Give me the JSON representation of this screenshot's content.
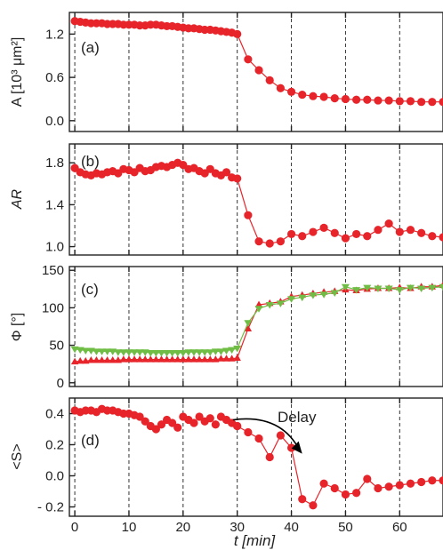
{
  "colors": {
    "red": "#e8242b",
    "green": "#6fbd44",
    "axis": "#222222",
    "grid": "#333333"
  },
  "chart_data": [
    {
      "type": "line",
      "panel_label": "(a)",
      "ylabel": "A [10³ μm²]",
      "yticks": [
        "1.2",
        "0.6",
        "0.0"
      ],
      "ytick_values": [
        1.2,
        0.6,
        0.0
      ],
      "ylim": [
        -0.15,
        1.5
      ],
      "xlim": [
        -1,
        68
      ],
      "grid": "vertical dashed at x ticks",
      "series": [
        {
          "marker": "circle",
          "x": [
            0,
            1,
            2,
            3,
            4,
            5,
            6,
            7,
            8,
            9,
            10,
            11,
            12,
            13,
            14,
            15,
            16,
            17,
            18,
            19,
            20,
            21,
            22,
            23,
            24,
            25,
            26,
            27,
            28,
            29,
            30,
            32,
            34,
            36,
            38,
            40,
            42,
            44,
            46,
            48,
            50,
            52,
            54,
            56,
            58,
            60,
            62,
            64,
            66,
            68
          ],
          "y": [
            1.38,
            1.37,
            1.36,
            1.35,
            1.35,
            1.35,
            1.34,
            1.34,
            1.34,
            1.33,
            1.33,
            1.33,
            1.32,
            1.32,
            1.33,
            1.33,
            1.32,
            1.31,
            1.31,
            1.3,
            1.29,
            1.28,
            1.28,
            1.27,
            1.26,
            1.26,
            1.25,
            1.24,
            1.23,
            1.22,
            1.2,
            0.85,
            0.7,
            0.56,
            0.45,
            0.4,
            0.36,
            0.34,
            0.33,
            0.31,
            0.3,
            0.29,
            0.29,
            0.28,
            0.28,
            0.27,
            0.27,
            0.26,
            0.26,
            0.26
          ]
        }
      ]
    },
    {
      "type": "line",
      "panel_label": "(b)",
      "ylabel": "AR",
      "yticks": [
        "1.8",
        "1.4",
        "1.0"
      ],
      "ytick_values": [
        1.8,
        1.4,
        1.0
      ],
      "ylim": [
        0.92,
        1.98
      ],
      "xlim": [
        -1,
        68
      ],
      "grid": "vertical dashed at x ticks",
      "series": [
        {
          "marker": "circle",
          "x": [
            0,
            1,
            2,
            3,
            4,
            5,
            6,
            7,
            8,
            9,
            10,
            11,
            12,
            13,
            14,
            15,
            16,
            17,
            18,
            19,
            20,
            21,
            22,
            23,
            24,
            25,
            26,
            27,
            28,
            29,
            30,
            32,
            34,
            36,
            38,
            40,
            42,
            44,
            46,
            48,
            50,
            52,
            54,
            56,
            58,
            60,
            62,
            64,
            66,
            68
          ],
          "y": [
            1.75,
            1.71,
            1.69,
            1.68,
            1.7,
            1.69,
            1.71,
            1.72,
            1.7,
            1.74,
            1.73,
            1.71,
            1.75,
            1.72,
            1.73,
            1.76,
            1.77,
            1.76,
            1.78,
            1.8,
            1.78,
            1.74,
            1.75,
            1.72,
            1.7,
            1.74,
            1.7,
            1.68,
            1.71,
            1.66,
            1.65,
            1.3,
            1.05,
            1.03,
            1.05,
            1.12,
            1.1,
            1.14,
            1.18,
            1.13,
            1.08,
            1.12,
            1.1,
            1.16,
            1.22,
            1.14,
            1.16,
            1.13,
            1.1,
            1.09
          ]
        }
      ]
    },
    {
      "type": "line",
      "panel_label": "(c)",
      "ylabel": "Φ [°]",
      "yticks": [
        "150",
        "100",
        "50",
        "0"
      ],
      "ytick_values": [
        150,
        100,
        50,
        0
      ],
      "ylim": [
        -5,
        155
      ],
      "xlim": [
        -1,
        68
      ],
      "grid": "vertical dashed at x ticks",
      "series": [
        {
          "marker": "triangle-up",
          "color_key": "red",
          "x": [
            0,
            1,
            2,
            3,
            4,
            5,
            6,
            7,
            8,
            9,
            10,
            11,
            12,
            13,
            14,
            15,
            16,
            17,
            18,
            19,
            20,
            21,
            22,
            23,
            24,
            25,
            26,
            27,
            28,
            29,
            30,
            32,
            34,
            36,
            38,
            40,
            42,
            44,
            46,
            48,
            50,
            52,
            54,
            56,
            58,
            60,
            62,
            64,
            66,
            68
          ],
          "y": [
            28,
            29,
            29,
            30,
            30,
            30,
            30,
            30,
            30,
            31,
            31,
            31,
            31,
            31,
            31,
            31,
            31,
            31,
            31,
            31,
            31,
            31,
            31,
            31,
            31,
            31,
            31,
            32,
            32,
            32,
            33,
            72,
            104,
            106,
            108,
            115,
            117,
            119,
            121,
            122,
            124,
            123,
            125,
            126,
            126,
            127,
            126,
            128,
            128,
            130
          ]
        },
        {
          "marker": "triangle-down",
          "color_key": "green",
          "x": [
            0,
            1,
            2,
            3,
            4,
            5,
            6,
            7,
            8,
            9,
            10,
            11,
            12,
            13,
            14,
            15,
            16,
            17,
            18,
            19,
            20,
            21,
            22,
            23,
            24,
            25,
            26,
            27,
            28,
            29,
            30,
            32,
            34,
            36,
            38,
            40,
            42,
            44,
            46,
            48,
            50,
            52,
            54,
            56,
            58,
            60,
            62,
            64,
            66,
            68
          ],
          "y": [
            45,
            44,
            43,
            43,
            42,
            42,
            42,
            42,
            41,
            41,
            41,
            41,
            41,
            41,
            40,
            40,
            40,
            40,
            40,
            40,
            40,
            41,
            41,
            41,
            41,
            41,
            42,
            42,
            43,
            44,
            46,
            80,
            99,
            104,
            106,
            112,
            114,
            117,
            118,
            120,
            128,
            124,
            127,
            126,
            126,
            124,
            127,
            126,
            127,
            128
          ]
        }
      ]
    },
    {
      "type": "line",
      "panel_label": "(d)",
      "ylabel": "<S>",
      "yticks": [
        "0.4",
        "0.2",
        "0.0",
        "- 0.2"
      ],
      "ytick_values": [
        0.4,
        0.2,
        0.0,
        -0.2
      ],
      "ylim": [
        -0.26,
        0.5
      ],
      "xlim": [
        -1,
        68
      ],
      "xlabel": "t [min]",
      "xticks": [
        "0",
        "10",
        "20",
        "30",
        "40",
        "50",
        "60"
      ],
      "xtick_values": [
        0,
        10,
        20,
        30,
        40,
        50,
        60
      ],
      "grid": "vertical dashed at x ticks",
      "annotation": {
        "text": "Delay"
      },
      "series": [
        {
          "marker": "circle",
          "scatter_x": [
            0,
            1,
            2,
            3,
            4,
            5,
            6,
            7,
            8,
            9,
            10,
            11,
            12,
            13,
            14,
            15,
            16,
            17,
            18,
            19,
            20,
            21,
            22,
            23,
            24,
            25,
            26,
            27,
            28,
            29,
            30
          ],
          "scatter_y": [
            0.42,
            0.41,
            0.42,
            0.42,
            0.41,
            0.43,
            0.42,
            0.42,
            0.41,
            0.4,
            0.4,
            0.39,
            0.38,
            0.35,
            0.32,
            0.3,
            0.33,
            0.36,
            0.34,
            0.31,
            0.38,
            0.36,
            0.34,
            0.38,
            0.35,
            0.37,
            0.33,
            0.38,
            0.36,
            0.34,
            0.32
          ],
          "x": [
            30,
            32,
            34,
            36,
            38,
            40,
            42,
            44,
            46,
            48,
            50,
            52,
            54,
            56,
            58,
            60,
            62,
            64,
            66,
            68
          ],
          "y": [
            0.32,
            0.28,
            0.24,
            0.12,
            0.26,
            0.18,
            -0.15,
            -0.19,
            -0.05,
            -0.08,
            -0.12,
            -0.11,
            -0.02,
            -0.08,
            -0.07,
            -0.06,
            -0.05,
            -0.04,
            -0.03,
            -0.03
          ]
        }
      ]
    }
  ]
}
